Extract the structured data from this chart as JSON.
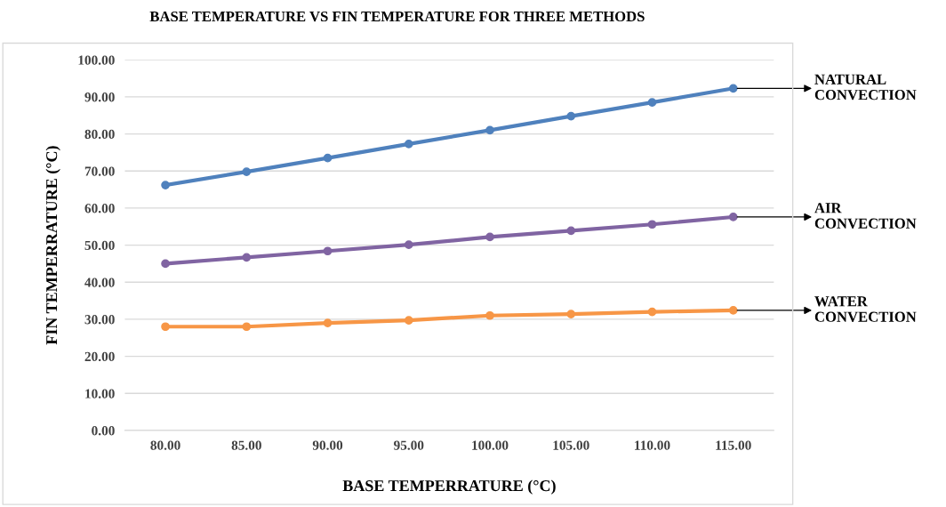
{
  "chart_data": {
    "type": "line",
    "title": "BASE TEMPERATURE VS FIN TEMPERATURE FOR THREE METHODS",
    "xlabel": "BASE TEMPERRATURE (°C)",
    "ylabel": "FIN TEMPERRATURE (°C)",
    "categories": [
      "80.00",
      "85.00",
      "90.00",
      "95.00",
      "100.00",
      "105.00",
      "110.00",
      "115.00"
    ],
    "series": [
      {
        "name": "NATURAL CONVECTION",
        "color": "#4f81bd",
        "values": [
          66.2,
          69.8,
          73.5,
          77.3,
          81.0,
          84.8,
          88.5,
          92.3
        ]
      },
      {
        "name": "AIR CONVECTION",
        "color": "#8064a2",
        "values": [
          45.0,
          46.7,
          48.4,
          50.1,
          52.2,
          53.9,
          55.6,
          57.6
        ]
      },
      {
        "name": "WATER CONVECTION",
        "color": "#f79646",
        "values": [
          28.0,
          28.0,
          29.0,
          29.7,
          31.0,
          31.4,
          32.0,
          32.4
        ]
      }
    ],
    "ylim": [
      0,
      100
    ],
    "yticks": [
      {
        "value": 0,
        "label": "0.00"
      },
      {
        "value": 10,
        "label": "10.00"
      },
      {
        "value": 20,
        "label": "20.00"
      },
      {
        "value": 30,
        "label": "30.00"
      },
      {
        "value": 40,
        "label": "40.00"
      },
      {
        "value": 50,
        "label": "50.00"
      },
      {
        "value": 60,
        "label": "60.00"
      },
      {
        "value": 70,
        "label": "70.00"
      },
      {
        "value": 80,
        "label": "80.00"
      },
      {
        "value": 90,
        "label": "90.00"
      },
      {
        "value": 100,
        "label": "100.00"
      }
    ],
    "grid": "y",
    "marker": "circle",
    "line_style": "solid",
    "legend": false
  }
}
